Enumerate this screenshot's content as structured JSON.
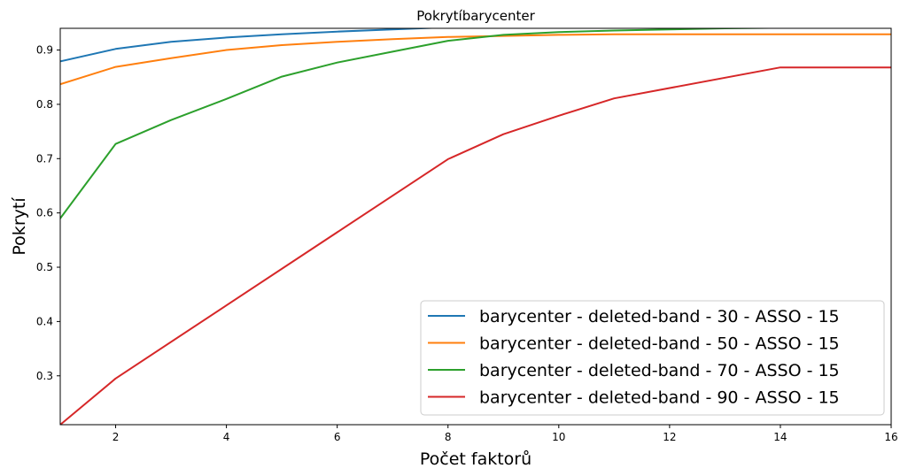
{
  "chart_data": {
    "type": "line",
    "title": "Pokrytíbarycenter",
    "xlabel": "Počet faktorů",
    "ylabel": "Pokrytí",
    "xlim": [
      1,
      16
    ],
    "ylim": [
      0.21,
      0.94
    ],
    "xticks": [
      2,
      4,
      6,
      8,
      10,
      12,
      14,
      16
    ],
    "yticks": [
      0.3,
      0.4,
      0.5,
      0.6,
      0.7,
      0.8,
      0.9
    ],
    "grid": false,
    "legend_position": "lower-right",
    "series": [
      {
        "name": "barycenter - deleted-band - 30 - ASSO - 15",
        "color": "#1f77b4",
        "x": [
          1,
          2,
          3,
          4,
          5,
          6,
          7,
          8,
          9,
          10,
          11,
          12,
          13,
          14,
          15,
          16
        ],
        "y": [
          0.879,
          0.902,
          0.915,
          0.923,
          0.929,
          0.934,
          0.938,
          0.942,
          0.944,
          0.946,
          0.948,
          0.949,
          0.95,
          0.95,
          0.95,
          0.95
        ]
      },
      {
        "name": "barycenter - deleted-band - 50 - ASSO - 15",
        "color": "#ff7f0e",
        "x": [
          1,
          2,
          3,
          4,
          5,
          6,
          7,
          8,
          9,
          10,
          11,
          12,
          13,
          14,
          15,
          16
        ],
        "y": [
          0.837,
          0.869,
          0.885,
          0.9,
          0.909,
          0.915,
          0.92,
          0.924,
          0.926,
          0.928,
          0.929,
          0.929,
          0.929,
          0.929,
          0.929,
          0.929
        ]
      },
      {
        "name": "barycenter - deleted-band - 70 - ASSO - 15",
        "color": "#2ca02c",
        "x": [
          1,
          2,
          3,
          4,
          5,
          6,
          7,
          8,
          9,
          10,
          11,
          12,
          13,
          14,
          15,
          16
        ],
        "y": [
          0.59,
          0.727,
          0.771,
          0.81,
          0.851,
          0.877,
          0.897,
          0.917,
          0.928,
          0.933,
          0.936,
          0.938,
          0.94,
          0.941,
          0.942,
          0.943
        ]
      },
      {
        "name": "barycenter - deleted-band - 90 - ASSO - 15",
        "color": "#d62728",
        "x": [
          1,
          2,
          8,
          9,
          10,
          11,
          14,
          16
        ],
        "y": [
          0.21,
          0.295,
          0.699,
          0.745,
          0.779,
          0.811,
          0.868,
          0.868
        ]
      }
    ]
  }
}
